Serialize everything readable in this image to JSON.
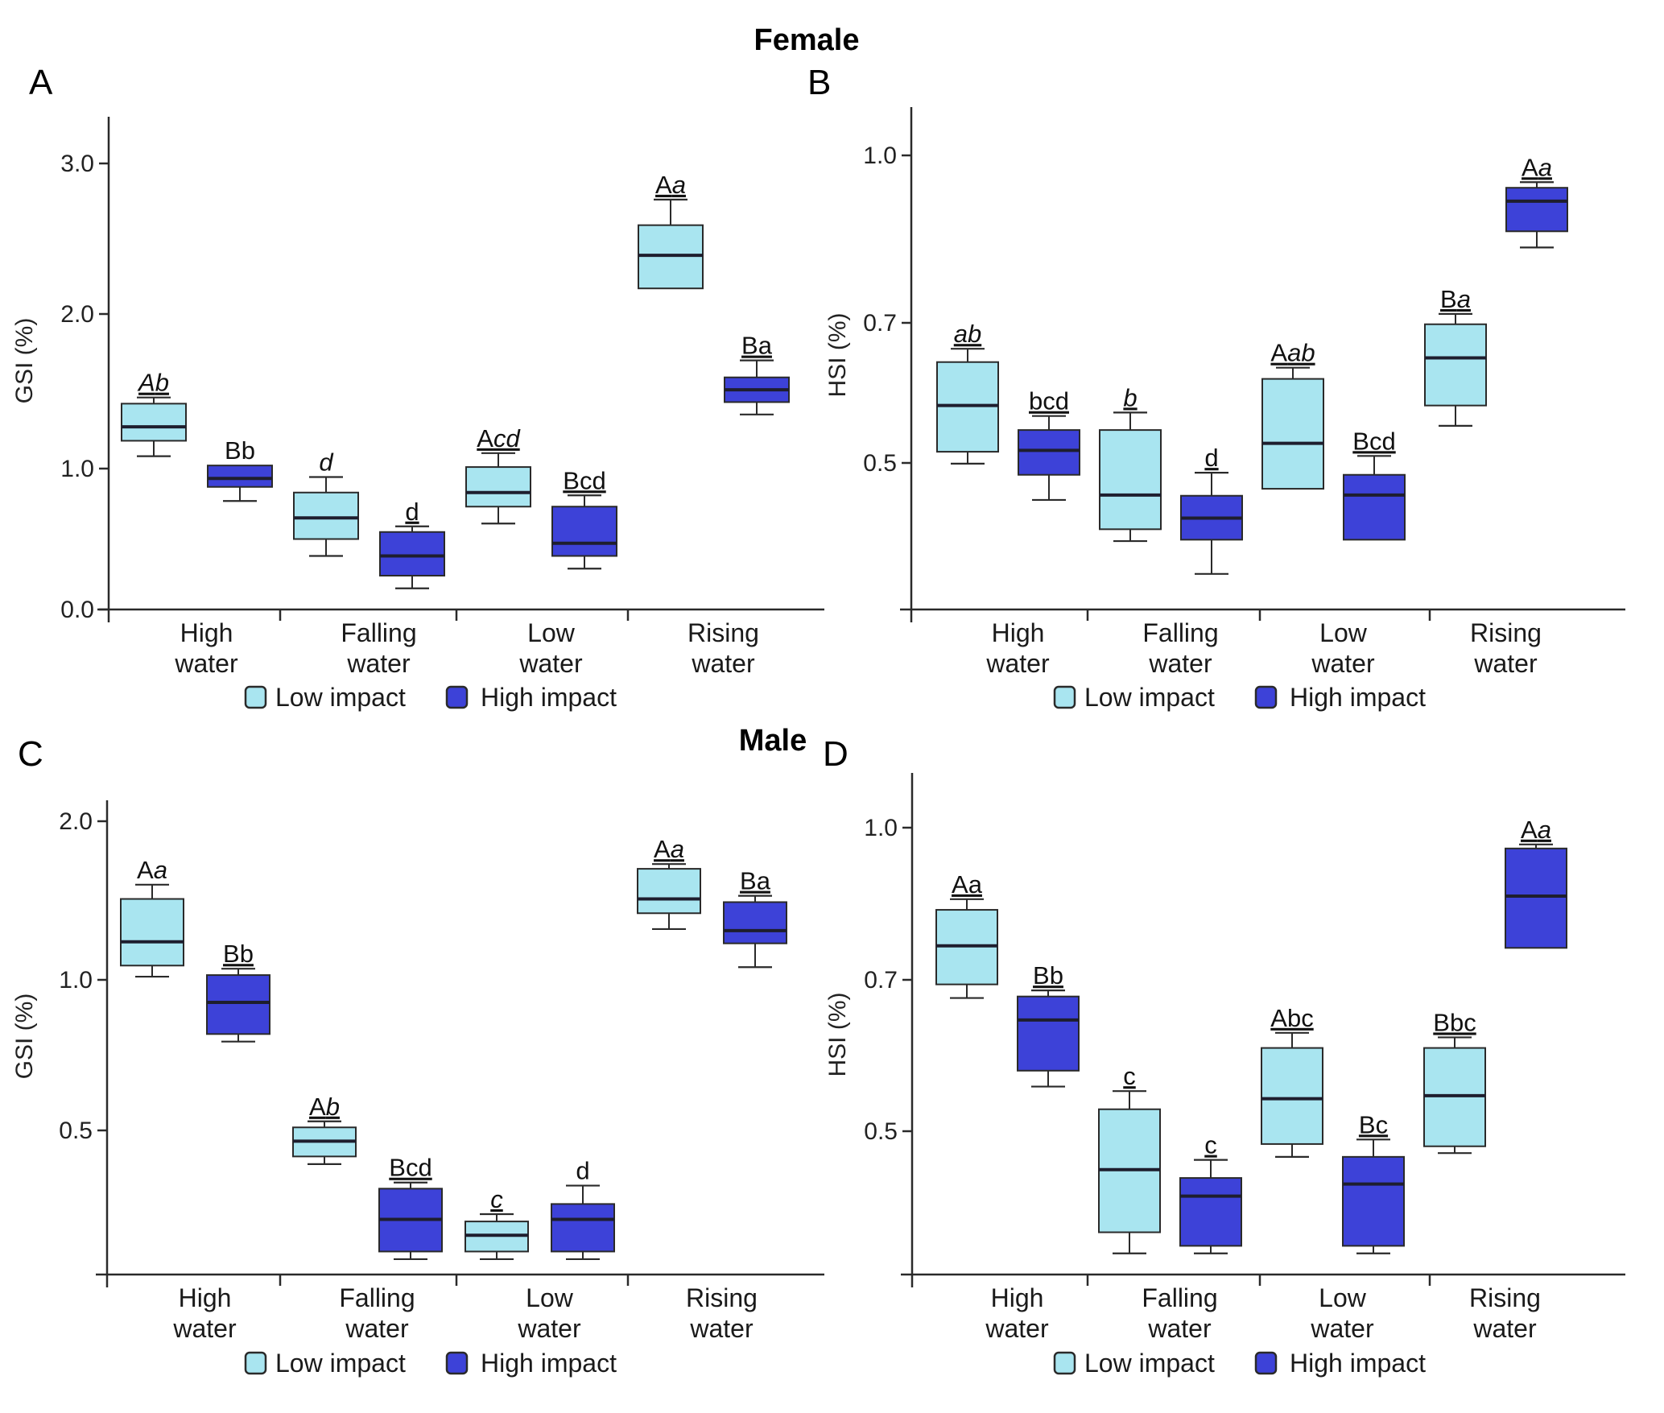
{
  "figure": {
    "female_title": "Female",
    "male_title": "Male"
  },
  "colors": {
    "low_impact": "#a9e5f0",
    "high_impact": "#3d42d8",
    "stroke": "#2a2a2a"
  },
  "chart_data": [
    {
      "type": "box",
      "panel": "A",
      "title": "Female",
      "ylabel": "GSI (%)",
      "xlabel": "",
      "yticks": [
        0.0,
        1.0,
        2.0,
        3.0
      ],
      "ytick_labels": [
        "0.0",
        "1.0",
        "2.0",
        "3.0"
      ],
      "axis_top": 3.3,
      "axis_bottom": 0.0,
      "categories": [
        [
          "High",
          "water"
        ],
        [
          "Falling",
          "water"
        ],
        [
          "Low",
          "water"
        ],
        [
          "Rising",
          "water"
        ]
      ],
      "legend": [
        "Low impact",
        "High impact"
      ],
      "legend_position": "bottom",
      "series": [
        {
          "name": "Low impact",
          "boxes": [
            {
              "whisker_high": 1.46,
              "q3": 1.42,
              "median": 1.27,
              "q1": 1.18,
              "whisker_low": 1.08,
              "label": [
                {
                  "t": "A",
                  "i": true
                },
                {
                  "t": "b",
                  "i": true
                }
              ],
              "underline": true
            },
            {
              "whisker_high": 0.94,
              "q3": 0.83,
              "median": 0.65,
              "q1": 0.5,
              "whisker_low": 0.38,
              "label": [
                {
                  "t": "d",
                  "i": true
                }
              ],
              "underline": false
            },
            {
              "whisker_high": 1.1,
              "q3": 1.01,
              "median": 0.83,
              "q1": 0.73,
              "whisker_low": 0.61,
              "label": [
                {
                  "t": "A",
                  "i": false
                },
                {
                  "t": "cd",
                  "i": true
                }
              ],
              "underline": true
            },
            {
              "whisker_high": 2.76,
              "q3": 2.59,
              "median": 2.39,
              "q1": 2.17,
              "whisker_low": 2.17,
              "label": [
                {
                  "t": "A",
                  "i": false
                },
                {
                  "t": "a",
                  "i": true
                }
              ],
              "underline": true
            }
          ]
        },
        {
          "name": "High impact",
          "boxes": [
            {
              "whisker_high": 1.02,
              "q3": 1.02,
              "median": 0.93,
              "q1": 0.87,
              "whisker_low": 0.77,
              "label": [
                {
                  "t": "Bb",
                  "i": false
                }
              ],
              "underline": false
            },
            {
              "whisker_high": 0.59,
              "q3": 0.55,
              "median": 0.38,
              "q1": 0.24,
              "whisker_low": 0.15,
              "label": [
                {
                  "t": "d",
                  "i": false
                }
              ],
              "underline": true
            },
            {
              "whisker_high": 0.81,
              "q3": 0.73,
              "median": 0.47,
              "q1": 0.38,
              "whisker_low": 0.29,
              "label": [
                {
                  "t": "Bcd",
                  "i": false
                }
              ],
              "underline": true
            },
            {
              "whisker_high": 1.7,
              "q3": 1.59,
              "median": 1.51,
              "q1": 1.43,
              "whisker_low": 1.35,
              "label": [
                {
                  "t": "Ba",
                  "i": false
                }
              ],
              "underline": true
            }
          ]
        }
      ]
    },
    {
      "type": "box",
      "panel": "B",
      "title": "Female",
      "ylabel": "HSI (%)",
      "xlabel": "",
      "yticks": [
        0.5,
        0.7,
        1.0
      ],
      "ytick_labels": [
        "0.5",
        "0.7",
        "1.0"
      ],
      "axis_top": 1.09,
      "axis_bottom": 0.29,
      "categories": [
        [
          "High",
          "water"
        ],
        [
          "Falling",
          "water"
        ],
        [
          "Low",
          "water"
        ],
        [
          "Rising",
          "water"
        ]
      ],
      "legend": [
        "Low impact",
        "High impact"
      ],
      "legend_position": "bottom",
      "series": [
        {
          "name": "Low impact",
          "boxes": [
            {
              "whisker_high": 0.663,
              "q3": 0.644,
              "median": 0.582,
              "q1": 0.516,
              "whisker_low": 0.499,
              "label": [
                {
                  "t": "ab",
                  "i": true
                }
              ],
              "underline": true
            },
            {
              "whisker_high": 0.572,
              "q3": 0.547,
              "median": 0.454,
              "q1": 0.405,
              "whisker_low": 0.388,
              "label": [
                {
                  "t": "b",
                  "i": true
                }
              ],
              "underline": true
            },
            {
              "whisker_high": 0.636,
              "q3": 0.62,
              "median": 0.528,
              "q1": 0.463,
              "whisker_low": 0.463,
              "label": [
                {
                  "t": "A",
                  "i": false
                },
                {
                  "t": "ab",
                  "i": true
                }
              ],
              "underline": true
            },
            {
              "whisker_high": 0.716,
              "q3": 0.698,
              "median": 0.65,
              "q1": 0.582,
              "whisker_low": 0.553,
              "label": [
                {
                  "t": "B",
                  "i": false
                },
                {
                  "t": "a",
                  "i": true
                }
              ],
              "underline": true
            }
          ]
        },
        {
          "name": "High impact",
          "boxes": [
            {
              "whisker_high": 0.567,
              "q3": 0.547,
              "median": 0.518,
              "q1": 0.483,
              "whisker_low": 0.447,
              "label": [
                {
                  "t": "bcd",
                  "i": false
                }
              ],
              "underline": true
            },
            {
              "whisker_high": 0.486,
              "q3": 0.453,
              "median": 0.421,
              "q1": 0.39,
              "whisker_low": 0.341,
              "label": [
                {
                  "t": "d",
                  "i": false
                }
              ],
              "underline": true
            },
            {
              "whisker_high": 0.51,
              "q3": 0.483,
              "median": 0.454,
              "q1": 0.39,
              "whisker_low": 0.39,
              "label": [
                {
                  "t": "Bcd",
                  "i": false
                }
              ],
              "underline": true
            },
            {
              "whisker_high": 0.952,
              "q3": 0.942,
              "median": 0.918,
              "q1": 0.864,
              "whisker_low": 0.835,
              "label": [
                {
                  "t": "A",
                  "i": false
                },
                {
                  "t": "a",
                  "i": true
                }
              ],
              "underline": true
            }
          ]
        }
      ]
    },
    {
      "type": "box",
      "panel": "C",
      "title": "Male",
      "ylabel": "GSI (%)",
      "xlabel": "",
      "yticks": [
        0.5,
        1.0,
        2.0
      ],
      "ytick_labels": [
        "0.5",
        "1.0",
        "2.0"
      ],
      "axis_top": 2.13,
      "axis_bottom": 0.03,
      "categories": [
        [
          "High",
          "water"
        ],
        [
          "Falling",
          "water"
        ],
        [
          "Low",
          "water"
        ],
        [
          "Rising",
          "water"
        ]
      ],
      "legend": [
        "Low impact",
        "High impact"
      ],
      "legend_position": "bottom",
      "series": [
        {
          "name": "Low impact",
          "boxes": [
            {
              "whisker_high": 1.6,
              "q3": 1.51,
              "median": 1.24,
              "q1": 1.09,
              "whisker_low": 1.02,
              "label": [
                {
                  "t": "A",
                  "i": false
                },
                {
                  "t": "a",
                  "i": true
                }
              ],
              "underline": false
            },
            {
              "whisker_high": 0.53,
              "q3": 0.51,
              "median": 0.465,
              "q1": 0.415,
              "whisker_low": 0.39,
              "label": [
                {
                  "t": "A",
                  "i": false
                },
                {
                  "t": "b",
                  "i": true
                }
              ],
              "underline": true
            },
            {
              "whisker_high": 0.227,
              "q3": 0.203,
              "median": 0.158,
              "q1": 0.105,
              "whisker_low": 0.08,
              "label": [
                {
                  "t": "c",
                  "i": true
                }
              ],
              "underline": true
            },
            {
              "whisker_high": 1.73,
              "q3": 1.7,
              "median": 1.51,
              "q1": 1.42,
              "whisker_low": 1.32,
              "label": [
                {
                  "t": "A",
                  "i": false
                },
                {
                  "t": "a",
                  "i": true
                }
              ],
              "underline": true
            }
          ]
        },
        {
          "name": "High impact",
          "boxes": [
            {
              "whisker_high": 1.07,
              "q3": 1.03,
              "median": 0.925,
              "q1": 0.82,
              "whisker_low": 0.795,
              "label": [
                {
                  "t": "Bb",
                  "i": false
                }
              ],
              "underline": true
            },
            {
              "whisker_high": 0.33,
              "q3": 0.31,
              "median": 0.21,
              "q1": 0.105,
              "whisker_low": 0.08,
              "label": [
                {
                  "t": "Bcd",
                  "i": false
                }
              ],
              "underline": true
            },
            {
              "whisker_high": 0.32,
              "q3": 0.26,
              "median": 0.21,
              "q1": 0.105,
              "whisker_low": 0.08,
              "label": [
                {
                  "t": "d",
                  "i": false
                }
              ],
              "underline": false
            },
            {
              "whisker_high": 1.53,
              "q3": 1.49,
              "median": 1.31,
              "q1": 1.23,
              "whisker_low": 1.08,
              "label": [
                {
                  "t": "Ba",
                  "i": false
                }
              ],
              "underline": true
            }
          ]
        }
      ]
    },
    {
      "type": "box",
      "panel": "D",
      "title": "Male",
      "ylabel": "HSI (%)",
      "xlabel": "",
      "yticks": [
        0.5,
        0.7,
        1.0
      ],
      "ytick_labels": [
        "0.5",
        "0.7",
        "1.0"
      ],
      "axis_top": 1.11,
      "axis_bottom": 0.31,
      "categories": [
        [
          "High",
          "water"
        ],
        [
          "Falling",
          "water"
        ],
        [
          "Low",
          "water"
        ],
        [
          "Rising",
          "water"
        ]
      ],
      "legend": [
        "Low impact",
        "High impact"
      ],
      "legend_position": "bottom",
      "series": [
        {
          "name": "Low impact",
          "boxes": [
            {
              "whisker_high": 0.859,
              "q3": 0.838,
              "median": 0.767,
              "q1": 0.694,
              "whisker_low": 0.676,
              "label": [
                {
                  "t": "Aa",
                  "i": false
                }
              ],
              "underline": true
            },
            {
              "whisker_high": 0.553,
              "q3": 0.529,
              "median": 0.449,
              "q1": 0.366,
              "whisker_low": 0.338,
              "label": [
                {
                  "t": "c",
                  "i": false
                }
              ],
              "underline": true
            },
            {
              "whisker_high": 0.63,
              "q3": 0.61,
              "median": 0.543,
              "q1": 0.483,
              "whisker_low": 0.466,
              "label": [
                {
                  "t": "Abc",
                  "i": false
                }
              ],
              "underline": true
            },
            {
              "whisker_high": 0.624,
              "q3": 0.61,
              "median": 0.547,
              "q1": 0.48,
              "whisker_low": 0.471,
              "label": [
                {
                  "t": "Bbc",
                  "i": false
                }
              ],
              "underline": true
            }
          ]
        },
        {
          "name": "High impact",
          "boxes": [
            {
              "whisker_high": 0.686,
              "q3": 0.678,
              "median": 0.647,
              "q1": 0.58,
              "whisker_low": 0.559,
              "label": [
                {
                  "t": "Bb",
                  "i": false
                }
              ],
              "underline": true
            },
            {
              "whisker_high": 0.462,
              "q3": 0.438,
              "median": 0.414,
              "q1": 0.348,
              "whisker_low": 0.338,
              "label": [
                {
                  "t": "c",
                  "i": false
                }
              ],
              "underline": true
            },
            {
              "whisker_high": 0.489,
              "q3": 0.466,
              "median": 0.43,
              "q1": 0.348,
              "whisker_low": 0.338,
              "label": [
                {
                  "t": "Bc",
                  "i": false
                }
              ],
              "underline": true
            },
            {
              "whisker_high": 0.967,
              "q3": 0.959,
              "median": 0.865,
              "q1": 0.763,
              "whisker_low": 0.763,
              "label": [
                {
                  "t": "A",
                  "i": false
                },
                {
                  "t": "a",
                  "i": true
                }
              ],
              "underline": true
            }
          ]
        }
      ]
    }
  ]
}
